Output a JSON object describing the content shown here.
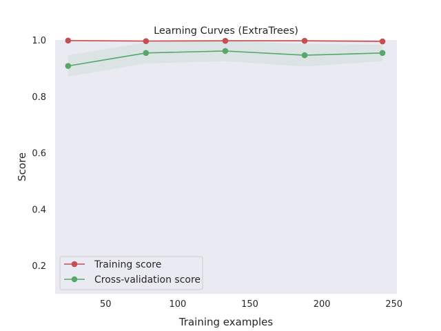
{
  "chart_data": {
    "type": "line",
    "title": "Learning Curves (ExtraTrees)",
    "xlabel": "Training examples",
    "ylabel": "Score",
    "xlim": [
      15,
      252
    ],
    "ylim": [
      0.1,
      1.0
    ],
    "x_ticks": [
      50,
      100,
      150,
      200,
      250
    ],
    "y_ticks": [
      0.2,
      0.4,
      0.6,
      0.8,
      1.0
    ],
    "x_tick_labels": [
      "50",
      "100",
      "150",
      "200",
      "250"
    ],
    "y_tick_labels": [
      "0.2",
      "0.4",
      "0.6",
      "0.8",
      "1.0"
    ],
    "grid": false,
    "background": "#eaeaf2",
    "legend_position": "lower-left",
    "x": [
      24,
      78,
      133,
      188,
      242
    ],
    "series": [
      {
        "name": "Training score",
        "color": "#c44e52",
        "values": [
          0.998,
          0.996,
          0.997,
          0.997,
          0.995
        ],
        "band_low": [
          0.997,
          0.994,
          0.995,
          0.995,
          0.993
        ],
        "band_high": [
          1.0,
          1.0,
          1.0,
          1.0,
          1.0
        ]
      },
      {
        "name": "Cross-validation score",
        "color": "#55a868",
        "values": [
          0.908,
          0.954,
          0.961,
          0.946,
          0.954
        ],
        "band_low": [
          0.87,
          0.917,
          0.925,
          0.906,
          0.925
        ],
        "band_high": [
          0.946,
          0.991,
          0.997,
          0.986,
          0.983
        ]
      }
    ]
  }
}
